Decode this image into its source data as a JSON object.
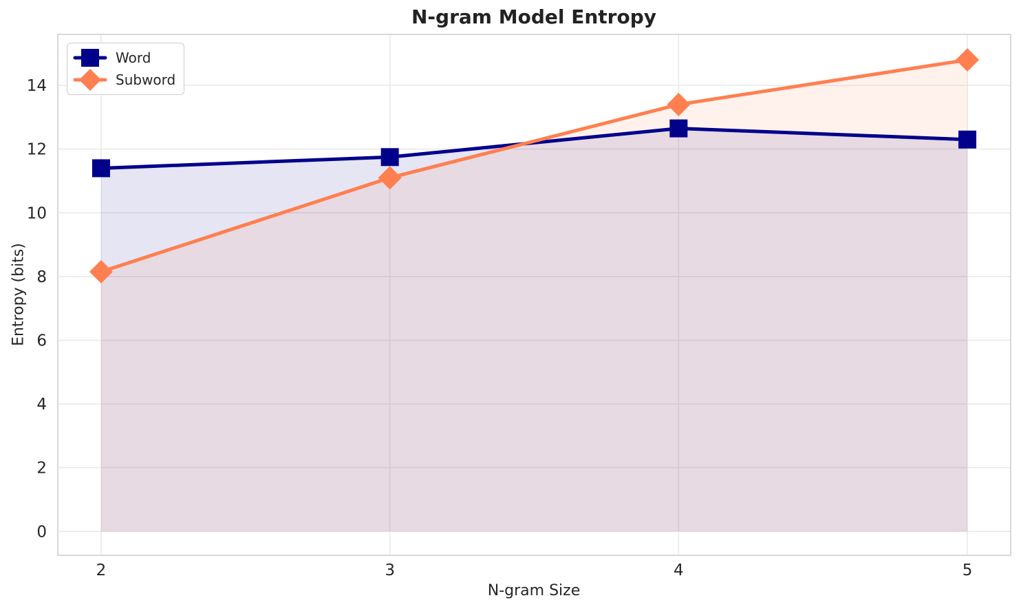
{
  "chart_data": {
    "type": "line",
    "title": "N-gram Model Entropy",
    "xlabel": "N-gram Size",
    "ylabel": "Entropy (bits)",
    "x": [
      2,
      3,
      4,
      5
    ],
    "series": [
      {
        "name": "Word",
        "values": [
          11.4,
          11.75,
          12.65,
          12.3
        ],
        "color": "#00008B",
        "marker": "square",
        "fill_alpha": 0.1
      },
      {
        "name": "Subword",
        "values": [
          8.15,
          11.1,
          13.4,
          14.8
        ],
        "color": "#FF7F50",
        "marker": "diamond",
        "fill_alpha": 0.1
      }
    ],
    "xticks": [
      2,
      3,
      4,
      5
    ],
    "yticks": [
      0,
      2,
      4,
      6,
      8,
      10,
      12,
      14
    ],
    "xlim": [
      1.85,
      5.15
    ],
    "ylim": [
      -0.75,
      15.6
    ],
    "grid": true,
    "area_fill_baseline": 0,
    "legend": {
      "position": "upper-left",
      "items": [
        "Word",
        "Subword"
      ]
    },
    "style": {
      "grid_color": "#e8e8e8",
      "spine_color": "#cccccc",
      "text_color": "#262626",
      "background": "#ffffff",
      "line_width": 5
    }
  }
}
